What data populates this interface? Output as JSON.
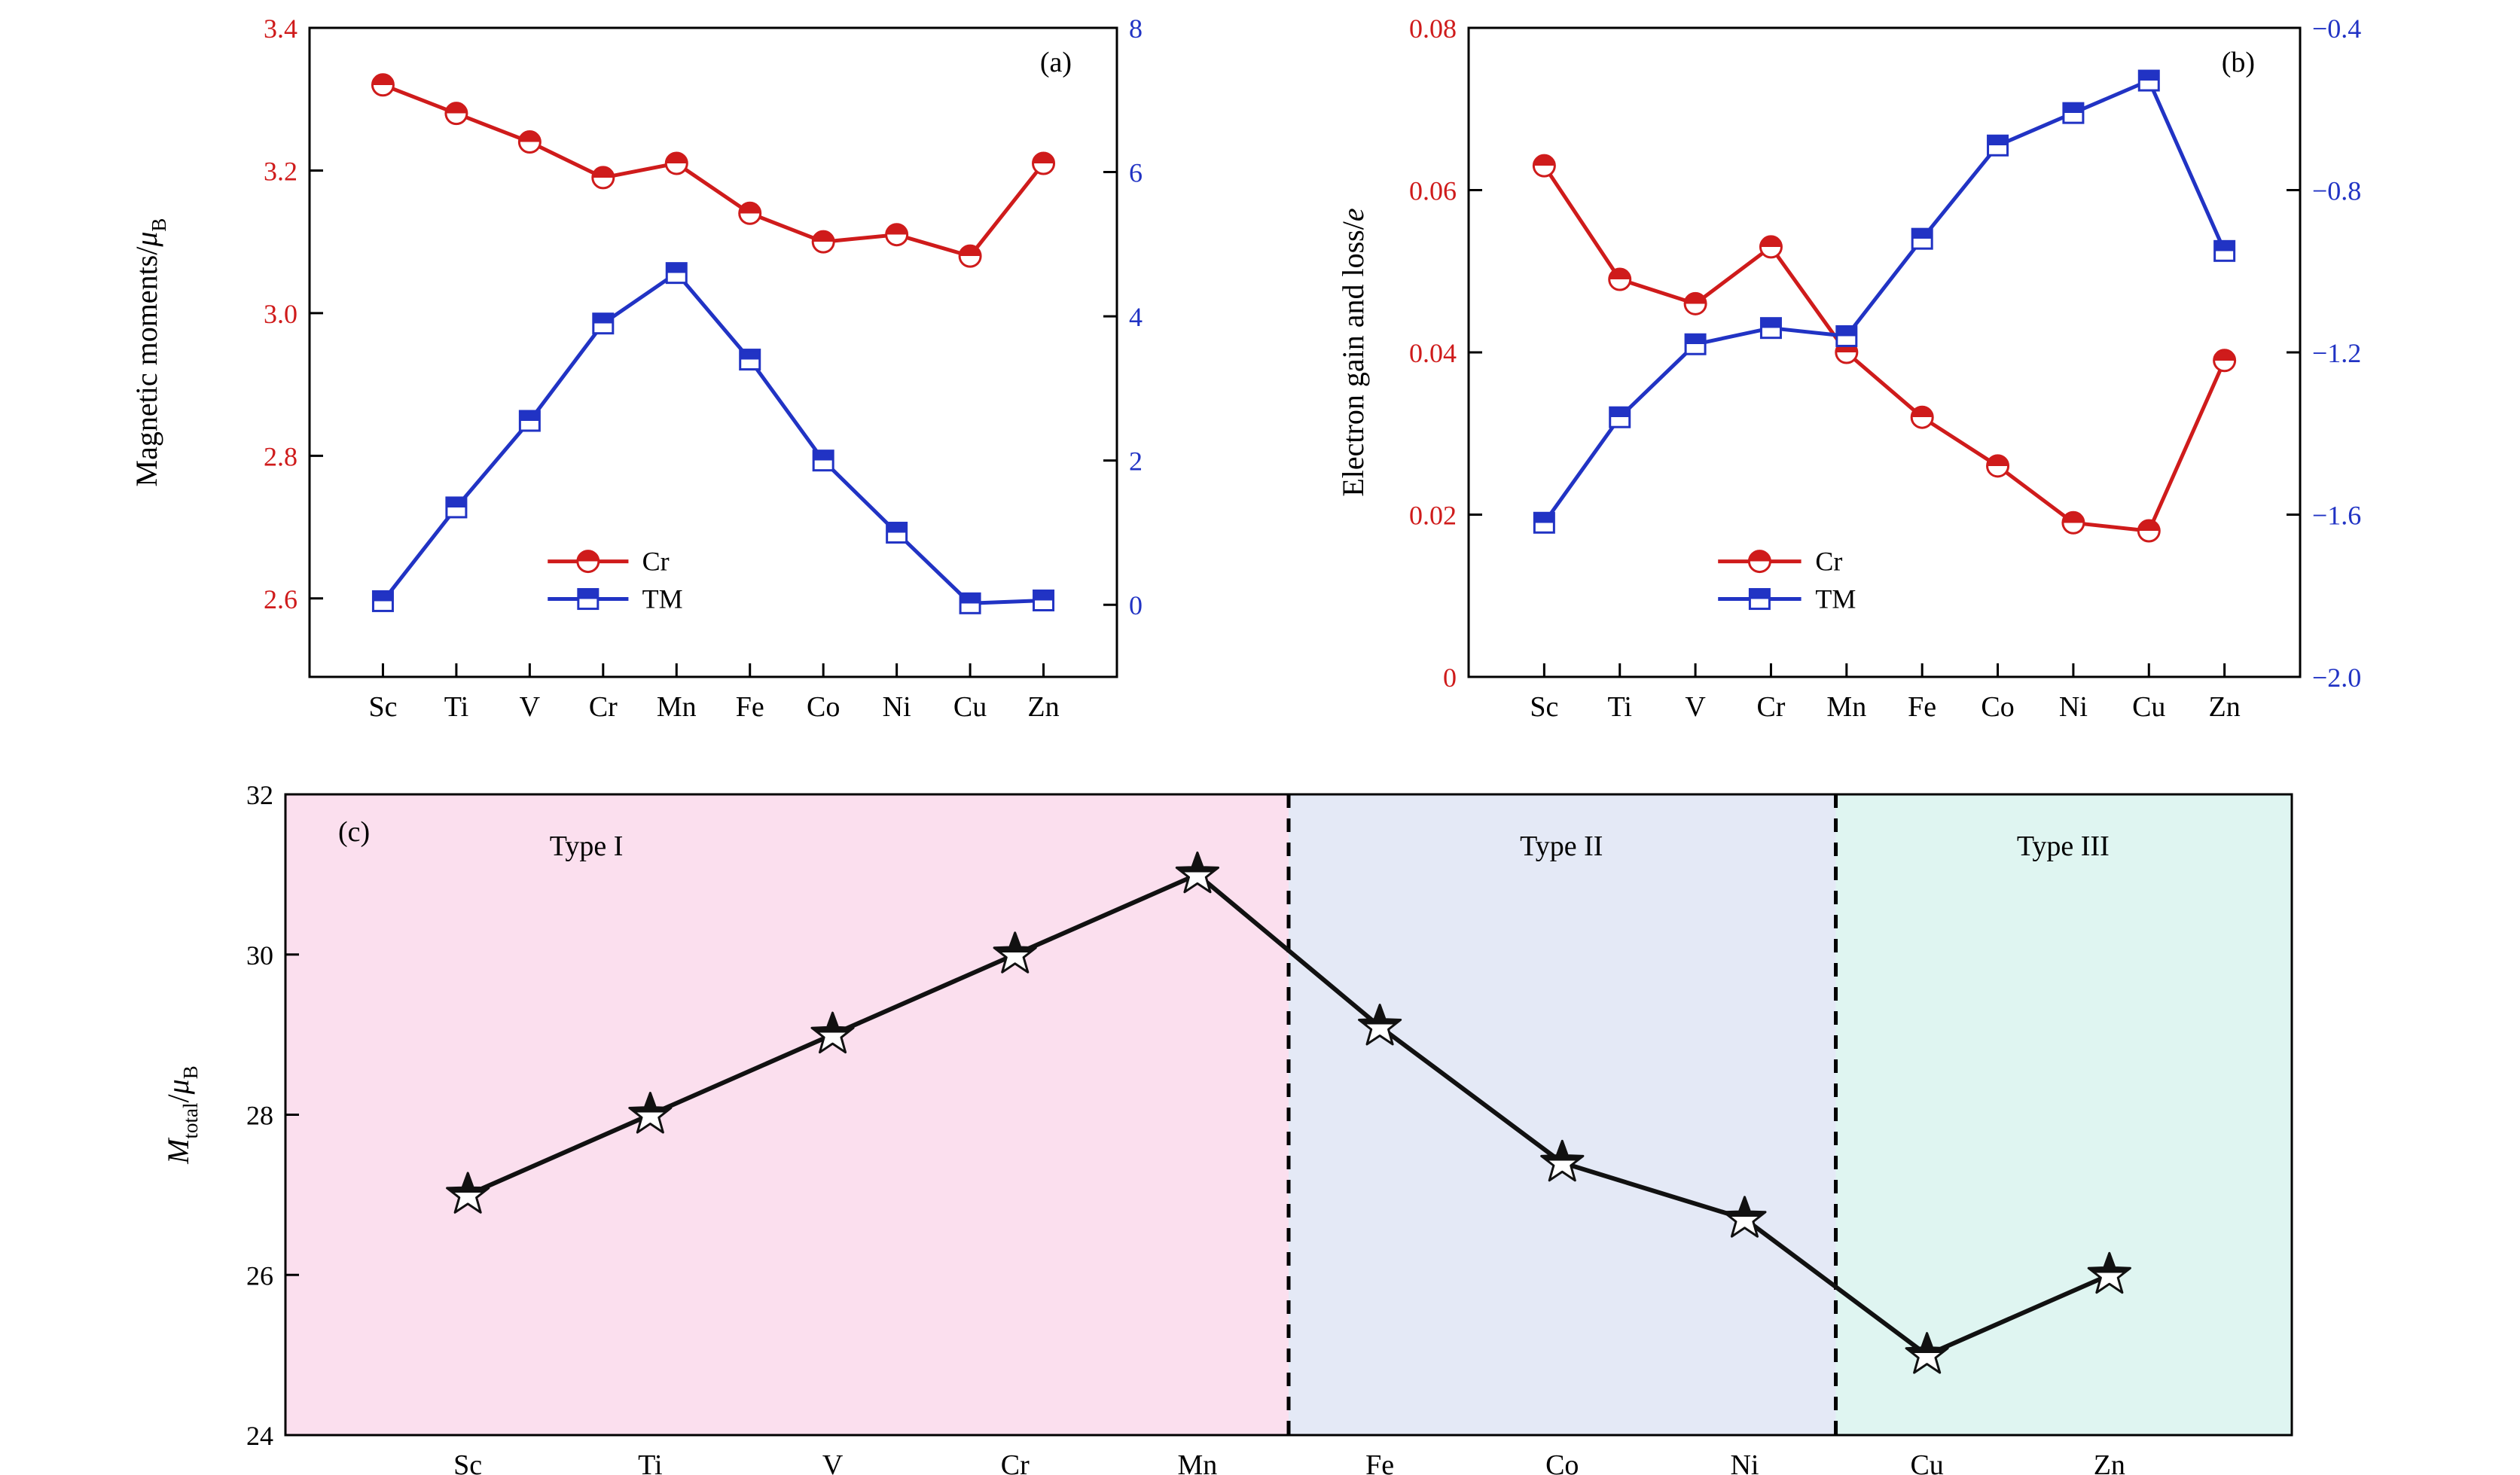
{
  "figure_title": "",
  "chart_data": [
    {
      "id": "a",
      "type": "line",
      "corner_label": "(a)",
      "ylabel": "Magnetic moments/μB",
      "ylabel_parts": [
        {
          "t": "Magnetic moments/"
        },
        {
          "t": "μ",
          "italic": true
        },
        {
          "t": "B",
          "sub": true
        }
      ],
      "categories": [
        "Sc",
        "Ti",
        "V",
        "Cr",
        "Mn",
        "Fe",
        "Co",
        "Ni",
        "Cu",
        "Zn"
      ],
      "left_axis": {
        "color": "#cf1b1b",
        "min": 2.49,
        "max": 3.4,
        "tick_values": [
          2.6,
          2.8,
          3.0,
          3.2,
          3.4
        ],
        "tick_labels": [
          "2.6",
          "2.8",
          "3.0",
          "3.2",
          "3.4"
        ]
      },
      "right_axis": {
        "color": "#2133c4",
        "min": -1.0,
        "max": 8.0,
        "tick_values": [
          0,
          2,
          4,
          6,
          8
        ],
        "tick_labels": [
          "0",
          "2",
          "4",
          "6",
          "8"
        ]
      },
      "legend": {
        "position": "lower-center",
        "entries": [
          "Cr",
          "TM"
        ]
      },
      "series": [
        {
          "name": "Cr",
          "axis": "left",
          "marker": "half-filled-circle",
          "color": "#cf1b1b",
          "values": [
            3.32,
            3.28,
            3.24,
            3.19,
            3.21,
            3.14,
            3.1,
            3.11,
            3.08,
            3.21
          ]
        },
        {
          "name": "TM",
          "axis": "right",
          "marker": "half-filled-square",
          "color": "#2133c4",
          "values": [
            0.05,
            1.35,
            2.55,
            3.9,
            4.6,
            3.4,
            2.0,
            1.0,
            0.02,
            0.06
          ]
        }
      ]
    },
    {
      "id": "b",
      "type": "line",
      "corner_label": "(b)",
      "ylabel": "Electron gain and loss/e",
      "ylabel_parts": [
        {
          "t": "Electron gain and loss/"
        },
        {
          "t": "e",
          "italic": true
        }
      ],
      "categories": [
        "Sc",
        "Ti",
        "V",
        "Cr",
        "Mn",
        "Fe",
        "Co",
        "Ni",
        "Cu",
        "Zn"
      ],
      "left_axis": {
        "color": "#cf1b1b",
        "min": 0,
        "max": 0.08,
        "tick_values": [
          0,
          0.02,
          0.04,
          0.06,
          0.08
        ],
        "tick_labels": [
          "0",
          "0.02",
          "0.04",
          "0.06",
          "0.08"
        ]
      },
      "right_axis": {
        "color": "#2133c4",
        "min": -2.0,
        "max": -0.4,
        "tick_values": [
          -2.0,
          -1.6,
          -1.2,
          -0.8,
          -0.4
        ],
        "tick_labels": [
          "−2.0",
          "−1.6",
          "−1.2",
          "−0.8",
          "−0.4"
        ]
      },
      "legend": {
        "position": "lower-center",
        "entries": [
          "Cr",
          "TM"
        ]
      },
      "series": [
        {
          "name": "Cr",
          "axis": "left",
          "marker": "half-filled-circle",
          "color": "#cf1b1b",
          "values": [
            0.063,
            0.049,
            0.046,
            0.053,
            0.04,
            0.032,
            0.026,
            0.019,
            0.018,
            0.039
          ]
        },
        {
          "name": "TM",
          "axis": "right",
          "marker": "half-filled-square",
          "color": "#2133c4",
          "values": [
            -1.62,
            -1.36,
            -1.18,
            -1.14,
            -1.16,
            -0.92,
            -0.69,
            -0.61,
            -0.53,
            -0.95
          ]
        }
      ]
    },
    {
      "id": "c",
      "type": "line",
      "corner_label": "(c)",
      "ylabel": "Mtotal/μB",
      "ylabel_parts": [
        {
          "t": "M",
          "italic": true
        },
        {
          "t": "total",
          "sub": true
        },
        {
          "t": "/"
        },
        {
          "t": "μ",
          "italic": true
        },
        {
          "t": "B",
          "sub": true
        }
      ],
      "categories": [
        "Sc",
        "Ti",
        "V",
        "Cr",
        "Mn",
        "Fe",
        "Co",
        "Ni",
        "Cu",
        "Zn"
      ],
      "left_axis": {
        "color": "#000000",
        "min": 24,
        "max": 32,
        "tick_values": [
          24,
          26,
          28,
          30,
          32
        ],
        "tick_labels": [
          "24",
          "26",
          "28",
          "30",
          "32"
        ]
      },
      "regions": [
        {
          "label": "Type I",
          "color": "#fbdfee",
          "from": -1,
          "to": 4.5
        },
        {
          "label": "Type II",
          "color": "#e4e9f6",
          "from": 4.5,
          "to": 7.5
        },
        {
          "label": "Type III",
          "color": "#dff5f1",
          "from": 7.5,
          "to": 10
        }
      ],
      "separators": [
        4.5,
        7.5
      ],
      "series": [
        {
          "name": "Mtotal",
          "axis": "left",
          "marker": "half-filled-star",
          "color": "#111111",
          "values": [
            27.0,
            28.0,
            29.0,
            30.0,
            31.0,
            29.1,
            27.4,
            26.7,
            25.0,
            26.0
          ]
        }
      ]
    }
  ]
}
